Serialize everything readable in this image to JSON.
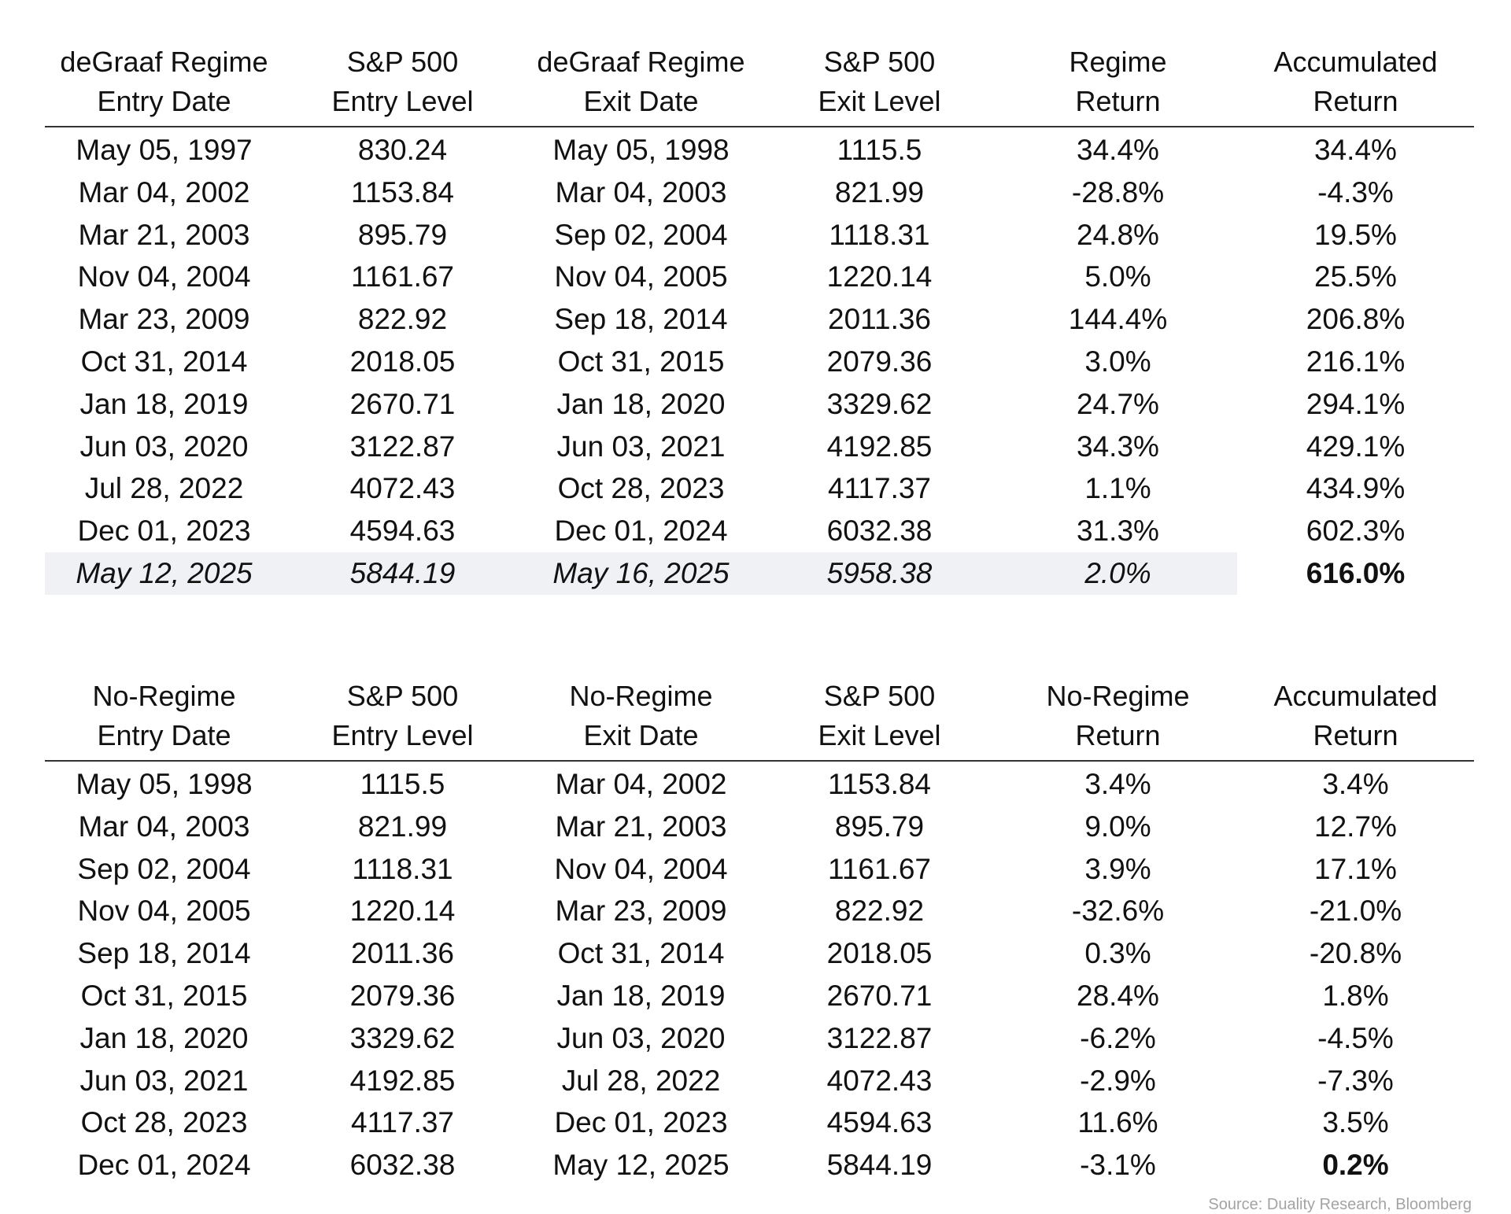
{
  "regime_table": {
    "headers": [
      [
        "deGraaf Regime",
        "Entry Date"
      ],
      [
        "S&P 500",
        "Entry Level"
      ],
      [
        "deGraaf Regime",
        "Exit Date"
      ],
      [
        "S&P 500",
        "Exit Level"
      ],
      [
        "Regime",
        "Return"
      ],
      [
        "Accumulated",
        "Return"
      ]
    ],
    "rows": [
      [
        "May 05, 1997",
        "830.24",
        "May 05, 1998",
        "1115.5",
        "34.4%",
        "34.4%"
      ],
      [
        "Mar 04, 2002",
        "1153.84",
        "Mar 04, 2003",
        "821.99",
        "-28.8%",
        "-4.3%"
      ],
      [
        "Mar 21, 2003",
        "895.79",
        "Sep 02, 2004",
        "1118.31",
        "24.8%",
        "19.5%"
      ],
      [
        "Nov 04, 2004",
        "1161.67",
        "Nov 04, 2005",
        "1220.14",
        "5.0%",
        "25.5%"
      ],
      [
        "Mar 23, 2009",
        "822.92",
        "Sep 18, 2014",
        "2011.36",
        "144.4%",
        "206.8%"
      ],
      [
        "Oct 31, 2014",
        "2018.05",
        "Oct 31, 2015",
        "2079.36",
        "3.0%",
        "216.1%"
      ],
      [
        "Jan 18, 2019",
        "2670.71",
        "Jan 18, 2020",
        "3329.62",
        "24.7%",
        "294.1%"
      ],
      [
        "Jun 03, 2020",
        "3122.87",
        "Jun 03, 2021",
        "4192.85",
        "34.3%",
        "429.1%"
      ],
      [
        "Jul 28, 2022",
        "4072.43",
        "Oct 28, 2023",
        "4117.37",
        "1.1%",
        "434.9%"
      ],
      [
        "Dec 01, 2023",
        "4594.63",
        "Dec 01, 2024",
        "6032.38",
        "31.3%",
        "602.3%"
      ],
      [
        "May 12, 2025",
        "5844.19",
        "May 16, 2025",
        "5958.38",
        "2.0%",
        "616.0%"
      ]
    ]
  },
  "no_regime_table": {
    "headers": [
      [
        "No-Regime",
        "Entry Date"
      ],
      [
        "S&P 500",
        "Entry Level"
      ],
      [
        "No-Regime",
        "Exit Date"
      ],
      [
        "S&P 500",
        "Exit Level"
      ],
      [
        "No-Regime",
        "Return"
      ],
      [
        "Accumulated",
        "Return"
      ]
    ],
    "rows": [
      [
        "May 05, 1998",
        "1115.5",
        "Mar 04, 2002",
        "1153.84",
        "3.4%",
        "3.4%"
      ],
      [
        "Mar 04, 2003",
        "821.99",
        "Mar 21, 2003",
        "895.79",
        "9.0%",
        "12.7%"
      ],
      [
        "Sep 02, 2004",
        "1118.31",
        "Nov 04, 2004",
        "1161.67",
        "3.9%",
        "17.1%"
      ],
      [
        "Nov 04, 2005",
        "1220.14",
        "Mar 23, 2009",
        "822.92",
        "-32.6%",
        "-21.0%"
      ],
      [
        "Sep 18, 2014",
        "2011.36",
        "Oct 31, 2014",
        "2018.05",
        "0.3%",
        "-20.8%"
      ],
      [
        "Oct 31, 2015",
        "2079.36",
        "Jan 18, 2019",
        "2670.71",
        "28.4%",
        "1.8%"
      ],
      [
        "Jan 18, 2020",
        "3329.62",
        "Jun 03, 2020",
        "3122.87",
        "-6.2%",
        "-4.5%"
      ],
      [
        "Jun 03, 2021",
        "4192.85",
        "Jul 28, 2022",
        "4072.43",
        "-2.9%",
        "-7.3%"
      ],
      [
        "Oct 28, 2023",
        "4117.37",
        "Dec 01, 2023",
        "4594.63",
        "11.6%",
        "3.5%"
      ],
      [
        "Dec 01, 2024",
        "6032.38",
        "May 12, 2025",
        "5844.19",
        "-3.1%",
        "0.2%"
      ]
    ]
  },
  "source": "Source: Duality Research, Bloomberg",
  "colors": {
    "highlight_row": "#eff1f5",
    "source_text": "#a3a3a3",
    "rule": "#333333"
  }
}
